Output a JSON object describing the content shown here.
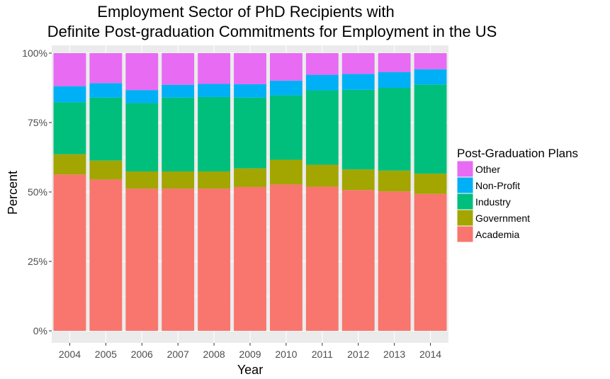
{
  "chart_data": {
    "type": "bar",
    "stacked": true,
    "title": [
      "Employment Sector of PhD Recipients with",
      "Definite Post-graduation Commitments for Employment in the US"
    ],
    "xlabel": "Year",
    "ylabel": "Percent",
    "ylim": [
      0,
      1
    ],
    "yticks": [
      0,
      0.25,
      0.5,
      0.75,
      1.0
    ],
    "ytick_labels": [
      "0%",
      "25%",
      "50%",
      "75%",
      "100%"
    ],
    "grid": true,
    "legend_position": "right",
    "legend_title": "Post-Graduation Plans",
    "legend_order": [
      "Other",
      "Non-Profit",
      "Industry",
      "Government",
      "Academia"
    ],
    "categories": [
      "2004",
      "2005",
      "2006",
      "2007",
      "2008",
      "2009",
      "2010",
      "2011",
      "2012",
      "2013",
      "2014"
    ],
    "series": [
      {
        "name": "Academia",
        "color": "#F8766D",
        "values": [
          0.563,
          0.545,
          0.512,
          0.512,
          0.512,
          0.518,
          0.527,
          0.519,
          0.507,
          0.502,
          0.493
        ]
      },
      {
        "name": "Government",
        "color": "#A3A500",
        "values": [
          0.073,
          0.068,
          0.062,
          0.062,
          0.062,
          0.067,
          0.089,
          0.079,
          0.074,
          0.075,
          0.073
        ]
      },
      {
        "name": "Industry",
        "color": "#00BF7D",
        "values": [
          0.187,
          0.227,
          0.246,
          0.266,
          0.268,
          0.255,
          0.232,
          0.268,
          0.287,
          0.298,
          0.321
        ]
      },
      {
        "name": "Non-Profit",
        "color": "#00B0F6",
        "values": [
          0.058,
          0.052,
          0.047,
          0.046,
          0.047,
          0.048,
          0.053,
          0.056,
          0.057,
          0.057,
          0.055
        ]
      },
      {
        "name": "Other",
        "color": "#E76BF3",
        "values": [
          0.119,
          0.108,
          0.133,
          0.114,
          0.111,
          0.112,
          0.099,
          0.078,
          0.075,
          0.068,
          0.058
        ]
      }
    ]
  }
}
